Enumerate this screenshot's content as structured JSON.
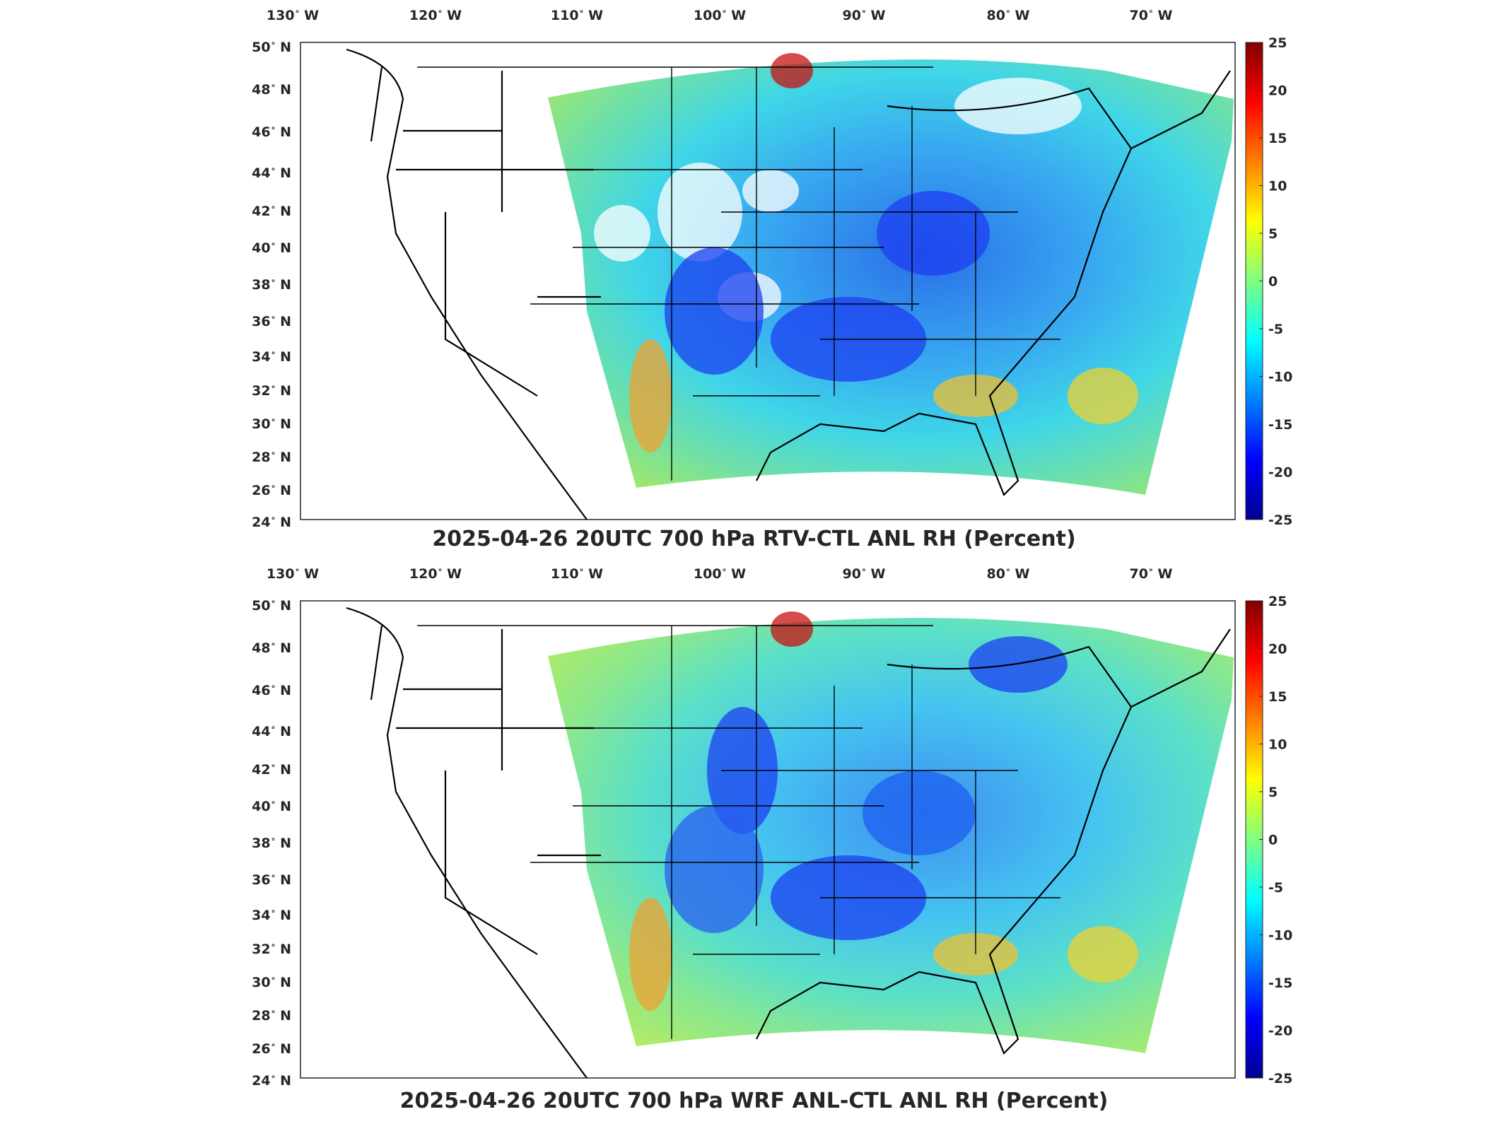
{
  "lon_labels": [
    {
      "deg": "130",
      "hem": "W"
    },
    {
      "deg": "120",
      "hem": "W"
    },
    {
      "deg": "110",
      "hem": "W"
    },
    {
      "deg": "100",
      "hem": "W"
    },
    {
      "deg": "90",
      "hem": "W"
    },
    {
      "deg": "80",
      "hem": "W"
    },
    {
      "deg": "70",
      "hem": "W"
    }
  ],
  "lat_labels": [
    {
      "deg": "50",
      "hem": "N"
    },
    {
      "deg": "48",
      "hem": "N"
    },
    {
      "deg": "46",
      "hem": "N"
    },
    {
      "deg": "44",
      "hem": "N"
    },
    {
      "deg": "42",
      "hem": "N"
    },
    {
      "deg": "40",
      "hem": "N"
    },
    {
      "deg": "38",
      "hem": "N"
    },
    {
      "deg": "36",
      "hem": "N"
    },
    {
      "deg": "34",
      "hem": "N"
    },
    {
      "deg": "32",
      "hem": "N"
    },
    {
      "deg": "30",
      "hem": "N"
    },
    {
      "deg": "28",
      "hem": "N"
    },
    {
      "deg": "26",
      "hem": "N"
    },
    {
      "deg": "24",
      "hem": "N"
    }
  ],
  "colorbar": {
    "min": -25,
    "max": 25,
    "ticks": [
      "25",
      "20",
      "15",
      "10",
      "5",
      "0",
      "-5",
      "-10",
      "-15",
      "-20",
      "-25"
    ],
    "colormap": [
      "#00008f",
      "#0000ff",
      "#0080ff",
      "#00ffff",
      "#80ff80",
      "#ffff00",
      "#ff8000",
      "#ff0000",
      "#800000"
    ]
  },
  "panels": [
    {
      "title": "2025-04-26 20UTC 700 hPa RTV-CTL ANL RH (Percent)"
    },
    {
      "title": "2025-04-26 20UTC 700 hPa WRF ANL-CTL ANL RH (Percent)"
    }
  ]
}
